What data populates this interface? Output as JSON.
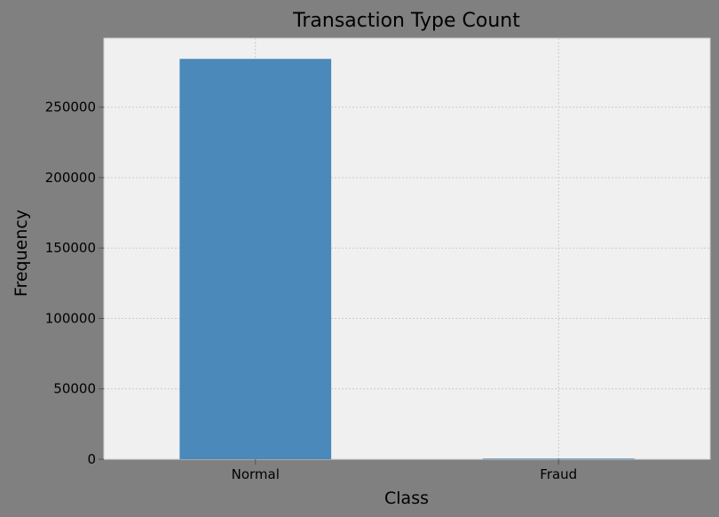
{
  "chart_data": {
    "type": "bar",
    "title": "Transaction Type Count",
    "xlabel": "Class",
    "ylabel": "Frequency",
    "categories": [
      "Normal",
      "Fraud"
    ],
    "values": [
      284315,
      492
    ],
    "ylim": [
      0,
      299000
    ],
    "yticks": [
      0,
      50000,
      100000,
      150000,
      200000,
      250000
    ],
    "grid": true,
    "colors": {
      "figure_background": "#808080",
      "plot_background": "#f0f0f0",
      "bar": "#4a89b9",
      "grid": "#cbcbcb"
    }
  }
}
